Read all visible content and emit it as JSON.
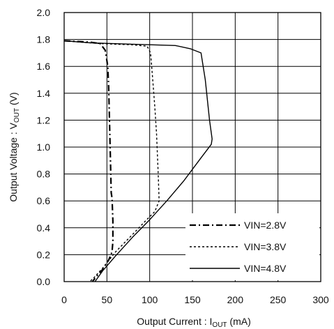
{
  "chart_data": {
    "type": "line",
    "title": "",
    "xlabel": "Output Current : I",
    "xlabel_sub": "OUT",
    "xlabel_unit": " (mA)",
    "ylabel": "Output Voltage : V",
    "ylabel_sub": "OUT",
    "ylabel_unit": " (V)",
    "xlim": [
      0,
      300
    ],
    "ylim": [
      0,
      2.0
    ],
    "x_ticks": [
      "0",
      "50",
      "100",
      "150",
      "200",
      "250",
      "300"
    ],
    "y_ticks": [
      "0.0",
      "0.2",
      "0.4",
      "0.6",
      "0.8",
      "1.0",
      "1.2",
      "1.4",
      "1.6",
      "1.8",
      "2.0"
    ],
    "grid": true,
    "legend_position": "bottom-right",
    "series": [
      {
        "name": "VIN=2.8V",
        "style": "dash-dot",
        "points": [
          [
            0,
            1.79
          ],
          [
            30,
            1.78
          ],
          [
            42,
            1.77
          ],
          [
            48,
            1.72
          ],
          [
            51,
            1.6
          ],
          [
            52,
            1.45
          ],
          [
            53,
            1.2
          ],
          [
            54,
            0.95
          ],
          [
            55,
            0.66
          ],
          [
            56,
            0.62
          ],
          [
            57,
            0.45
          ],
          [
            57,
            0.3
          ],
          [
            56,
            0.22
          ],
          [
            52,
            0.16
          ],
          [
            45,
            0.09
          ],
          [
            38,
            0.04
          ],
          [
            33,
            0.0
          ]
        ]
      },
      {
        "name": "VIN=3.8V",
        "style": "dotted",
        "points": [
          [
            0,
            1.79
          ],
          [
            40,
            1.77
          ],
          [
            80,
            1.76
          ],
          [
            97,
            1.75
          ],
          [
            101,
            1.7
          ],
          [
            103,
            1.55
          ],
          [
            106,
            1.3
          ],
          [
            108,
            1.1
          ],
          [
            110,
            0.8
          ],
          [
            111,
            0.6
          ],
          [
            106,
            0.52
          ],
          [
            95,
            0.45
          ],
          [
            80,
            0.35
          ],
          [
            60,
            0.22
          ],
          [
            45,
            0.1
          ],
          [
            35,
            0.03
          ],
          [
            30,
            0.0
          ]
        ]
      },
      {
        "name": "VIN=4.8V",
        "style": "solid",
        "points": [
          [
            0,
            1.79
          ],
          [
            30,
            1.775
          ],
          [
            80,
            1.765
          ],
          [
            130,
            1.755
          ],
          [
            148,
            1.73
          ],
          [
            160,
            1.7
          ],
          [
            165,
            1.5
          ],
          [
            170,
            1.2
          ],
          [
            173,
            1.06
          ],
          [
            172,
            1.02
          ],
          [
            160,
            0.92
          ],
          [
            140,
            0.75
          ],
          [
            120,
            0.6
          ],
          [
            100,
            0.46
          ],
          [
            80,
            0.33
          ],
          [
            60,
            0.19
          ],
          [
            45,
            0.08
          ],
          [
            36,
            0.0
          ]
        ]
      }
    ]
  }
}
